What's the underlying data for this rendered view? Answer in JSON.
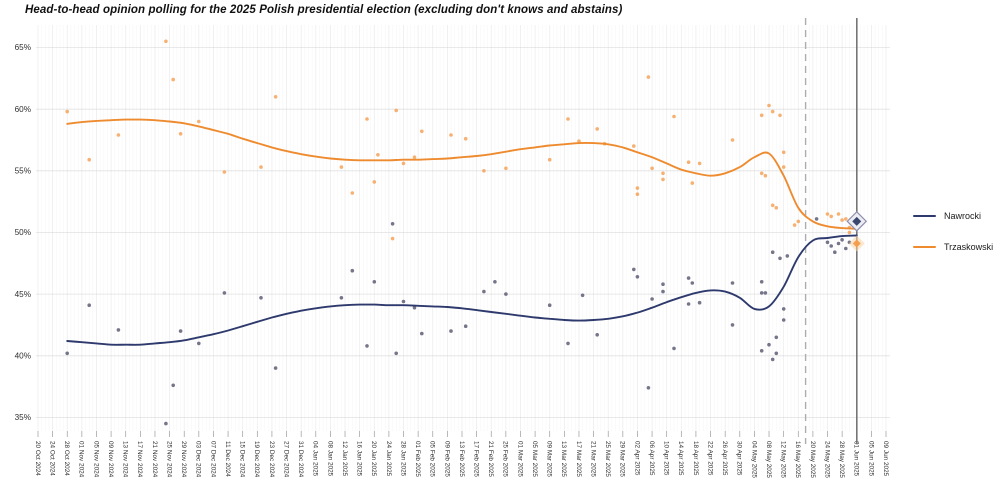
{
  "title": "Head-to-head opinion polling for the 2025 Polish presidential election (excluding don't knows and abstains)",
  "chart_data": {
    "type": "line",
    "title": "Head-to-head opinion polling for the 2025 Polish presidential election (excluding don't knows and abstains)",
    "xlabel": "",
    "ylabel": "",
    "grid": "on",
    "legend_position": "right",
    "x_start_date": "2024-10-20",
    "x_end_date": "2025-06-09",
    "tick_interval_days": 4,
    "x_tick_labels": [
      "20 Oct 2024",
      "24 Oct 2024",
      "28 Oct 2024",
      "01 Nov 2024",
      "05 Nov 2024",
      "09 Nov 2024",
      "13 Nov 2024",
      "17 Nov 2024",
      "21 Nov 2024",
      "25 Nov 2024",
      "29 Nov 2024",
      "03 Dec 2024",
      "07 Dec 2024",
      "11 Dec 2024",
      "15 Dec 2024",
      "19 Dec 2024",
      "23 Dec 2024",
      "27 Dec 2024",
      "31 Dec 2024",
      "04 Jan 2025",
      "08 Jan 2025",
      "12 Jan 2025",
      "16 Jan 2025",
      "20 Jan 2025",
      "24 Jan 2025",
      "28 Jan 2025",
      "01 Feb 2025",
      "05 Feb 2025",
      "09 Feb 2025",
      "13 Feb 2025",
      "17 Feb 2025",
      "21 Feb 2025",
      "25 Feb 2025",
      "01 Mar 2025",
      "05 Mar 2025",
      "09 Mar 2025",
      "13 Mar 2025",
      "17 Mar 2025",
      "21 Mar 2025",
      "25 Mar 2025",
      "29 Mar 2025",
      "02 Apr 2025",
      "06 Apr 2025",
      "10 Apr 2025",
      "14 Apr 2025",
      "18 Apr 2025",
      "22 Apr 2025",
      "26 Apr 2025",
      "30 Apr 2025",
      "04 May 2025",
      "08 May 2025",
      "12 May 2025",
      "16 May 2025",
      "20 May 2025",
      "24 May 2025",
      "28 May 2025",
      "01 Jun 2025",
      "05 Jun 2025",
      "09 Jun 2025"
    ],
    "y_ticks": [
      35,
      40,
      45,
      50,
      55,
      60,
      65
    ],
    "y_tick_labels": [
      "35%",
      "40%",
      "45%",
      "50%",
      "55%",
      "60%",
      "65%"
    ],
    "ylim": [
      33.8,
      66.8
    ],
    "events": [
      {
        "name": "first-round",
        "date": "2025-05-18",
        "style": "dashed",
        "color": "#adadad"
      },
      {
        "name": "runoff-election-day",
        "date": "2025-06-01",
        "style": "solid",
        "color": "#757575"
      }
    ],
    "series": [
      {
        "name": "Nawrocki",
        "color": "#2e3a6d",
        "point_color": "#50506a",
        "trend": {
          "start": "2024-10-28",
          "step_days": 4,
          "values": [
            41.2,
            41.1,
            41.0,
            40.9,
            40.9,
            40.9,
            41.0,
            41.1,
            41.25,
            41.5,
            41.75,
            42.05,
            42.4,
            42.75,
            43.1,
            43.4,
            43.65,
            43.85,
            44.0,
            44.1,
            44.15,
            44.15,
            44.1,
            44.1,
            44.05,
            44.0,
            43.95,
            43.85,
            43.7,
            43.55,
            43.4,
            43.25,
            43.1,
            43.0,
            42.9,
            42.85,
            42.9,
            43.0,
            43.2,
            43.5,
            43.9,
            44.35,
            44.75,
            45.1,
            45.3,
            45.2,
            44.7,
            43.8,
            44.0,
            45.6,
            48.0,
            49.35,
            49.55,
            49.7,
            49.75
          ]
        },
        "polls": [
          [
            "2024-10-28",
            40.2
          ],
          [
            "2024-11-03",
            44.1
          ],
          [
            "2024-11-11",
            42.1
          ],
          [
            "2024-11-24",
            34.5
          ],
          [
            "2024-11-26",
            37.6
          ],
          [
            "2024-11-28",
            42.0
          ],
          [
            "2024-12-03",
            41.0
          ],
          [
            "2024-12-10",
            45.1
          ],
          [
            "2024-12-20",
            44.7
          ],
          [
            "2024-12-24",
            39.0
          ],
          [
            "2025-01-11",
            44.7
          ],
          [
            "2025-01-14",
            46.9
          ],
          [
            "2025-01-18",
            40.8
          ],
          [
            "2025-01-20",
            46.0
          ],
          [
            "2025-01-25",
            50.7
          ],
          [
            "2025-01-26",
            40.2
          ],
          [
            "2025-01-28",
            44.4
          ],
          [
            "2025-01-31",
            43.9
          ],
          [
            "2025-02-02",
            41.8
          ],
          [
            "2025-02-10",
            42.0
          ],
          [
            "2025-02-14",
            42.4
          ],
          [
            "2025-02-19",
            45.2
          ],
          [
            "2025-02-22",
            46.0
          ],
          [
            "2025-02-25",
            45.0
          ],
          [
            "2025-03-09",
            44.1
          ],
          [
            "2025-03-14",
            41.0
          ],
          [
            "2025-03-18",
            44.9
          ],
          [
            "2025-03-22",
            41.7
          ],
          [
            "2025-04-01",
            47.0
          ],
          [
            "2025-04-02",
            46.4
          ],
          [
            "2025-04-05",
            37.4
          ],
          [
            "2025-04-06",
            44.6
          ],
          [
            "2025-04-09",
            45.8
          ],
          [
            "2025-04-09",
            45.2
          ],
          [
            "2025-04-12",
            40.6
          ],
          [
            "2025-04-16",
            46.3
          ],
          [
            "2025-04-16",
            44.2
          ],
          [
            "2025-04-17",
            45.9
          ],
          [
            "2025-04-19",
            44.3
          ],
          [
            "2025-04-28",
            45.9
          ],
          [
            "2025-04-28",
            42.5
          ],
          [
            "2025-05-06",
            46.0
          ],
          [
            "2025-05-06",
            45.1
          ],
          [
            "2025-05-06",
            40.4
          ],
          [
            "2025-05-07",
            45.1
          ],
          [
            "2025-05-08",
            40.9
          ],
          [
            "2025-05-09",
            39.7
          ],
          [
            "2025-05-09",
            48.4
          ],
          [
            "2025-05-10",
            41.5
          ],
          [
            "2025-05-10",
            40.2
          ],
          [
            "2025-05-11",
            47.9
          ],
          [
            "2025-05-12",
            43.8
          ],
          [
            "2025-05-12",
            42.9
          ],
          [
            "2025-05-13",
            48.1
          ],
          [
            "2025-05-21",
            51.1
          ],
          [
            "2025-05-24",
            49.2
          ],
          [
            "2025-05-25",
            48.9
          ],
          [
            "2025-05-26",
            48.4
          ],
          [
            "2025-05-27",
            49.1
          ],
          [
            "2025-05-28",
            49.4
          ],
          [
            "2025-05-29",
            48.7
          ],
          [
            "2025-05-30",
            49.2
          ]
        ],
        "result": {
          "date": "2025-06-01",
          "value": 50.9
        }
      },
      {
        "name": "Trzaskowski",
        "color": "#ee8b2f",
        "point_color": "#f49b4b",
        "trend": {
          "start": "2024-10-28",
          "step_days": 4,
          "values": [
            58.8,
            58.95,
            59.05,
            59.1,
            59.15,
            59.15,
            59.1,
            59.0,
            58.85,
            58.6,
            58.3,
            58.0,
            57.6,
            57.25,
            56.9,
            56.6,
            56.35,
            56.15,
            56.0,
            55.9,
            55.85,
            55.85,
            55.85,
            55.9,
            55.9,
            55.95,
            56.0,
            56.1,
            56.2,
            56.35,
            56.55,
            56.75,
            56.9,
            57.05,
            57.15,
            57.25,
            57.25,
            57.15,
            56.9,
            56.5,
            56.1,
            55.6,
            55.1,
            54.8,
            54.6,
            54.8,
            55.3,
            56.1,
            56.4,
            54.6,
            52.0,
            50.9,
            50.5,
            50.35,
            50.3
          ]
        },
        "polls": [
          [
            "2024-10-28",
            59.8
          ],
          [
            "2024-11-03",
            55.9
          ],
          [
            "2024-11-11",
            57.9
          ],
          [
            "2024-11-24",
            65.5
          ],
          [
            "2024-11-26",
            62.4
          ],
          [
            "2024-11-28",
            58.0
          ],
          [
            "2024-12-03",
            59.0
          ],
          [
            "2024-12-10",
            54.9
          ],
          [
            "2024-12-20",
            55.3
          ],
          [
            "2024-12-24",
            61.0
          ],
          [
            "2025-01-11",
            55.3
          ],
          [
            "2025-01-14",
            53.2
          ],
          [
            "2025-01-18",
            59.2
          ],
          [
            "2025-01-20",
            54.1
          ],
          [
            "2025-01-21",
            56.3
          ],
          [
            "2025-01-25",
            49.5
          ],
          [
            "2025-01-26",
            59.9
          ],
          [
            "2025-01-28",
            55.6
          ],
          [
            "2025-01-31",
            56.1
          ],
          [
            "2025-02-02",
            58.2
          ],
          [
            "2025-02-10",
            57.9
          ],
          [
            "2025-02-14",
            57.6
          ],
          [
            "2025-02-19",
            55.0
          ],
          [
            "2025-02-25",
            55.2
          ],
          [
            "2025-03-09",
            55.9
          ],
          [
            "2025-03-14",
            59.2
          ],
          [
            "2025-03-17",
            57.4
          ],
          [
            "2025-03-22",
            58.4
          ],
          [
            "2025-03-24",
            57.2
          ],
          [
            "2025-04-01",
            57.0
          ],
          [
            "2025-04-02",
            53.6
          ],
          [
            "2025-04-02",
            53.1
          ],
          [
            "2025-04-05",
            62.6
          ],
          [
            "2025-04-06",
            55.2
          ],
          [
            "2025-04-09",
            54.8
          ],
          [
            "2025-04-09",
            54.3
          ],
          [
            "2025-04-12",
            59.4
          ],
          [
            "2025-04-16",
            55.7
          ],
          [
            "2025-04-17",
            54.0
          ],
          [
            "2025-04-19",
            55.6
          ],
          [
            "2025-04-28",
            57.5
          ],
          [
            "2025-05-06",
            59.5
          ],
          [
            "2025-05-06",
            54.8
          ],
          [
            "2025-05-07",
            54.6
          ],
          [
            "2025-05-08",
            60.3
          ],
          [
            "2025-05-09",
            59.8
          ],
          [
            "2025-05-09",
            52.2
          ],
          [
            "2025-05-10",
            52.0
          ],
          [
            "2025-05-11",
            59.5
          ],
          [
            "2025-05-12",
            56.5
          ],
          [
            "2025-05-12",
            55.3
          ],
          [
            "2025-05-15",
            50.6
          ],
          [
            "2025-05-16",
            50.9
          ],
          [
            "2025-05-24",
            51.5
          ],
          [
            "2025-05-25",
            51.3
          ],
          [
            "2025-05-27",
            51.5
          ],
          [
            "2025-05-28",
            51.0
          ],
          [
            "2025-05-29",
            51.1
          ],
          [
            "2025-05-30",
            50.4
          ],
          [
            "2025-05-30",
            50.0
          ]
        ],
        "result": {
          "date": "2025-06-01",
          "value": 49.1
        }
      }
    ]
  }
}
